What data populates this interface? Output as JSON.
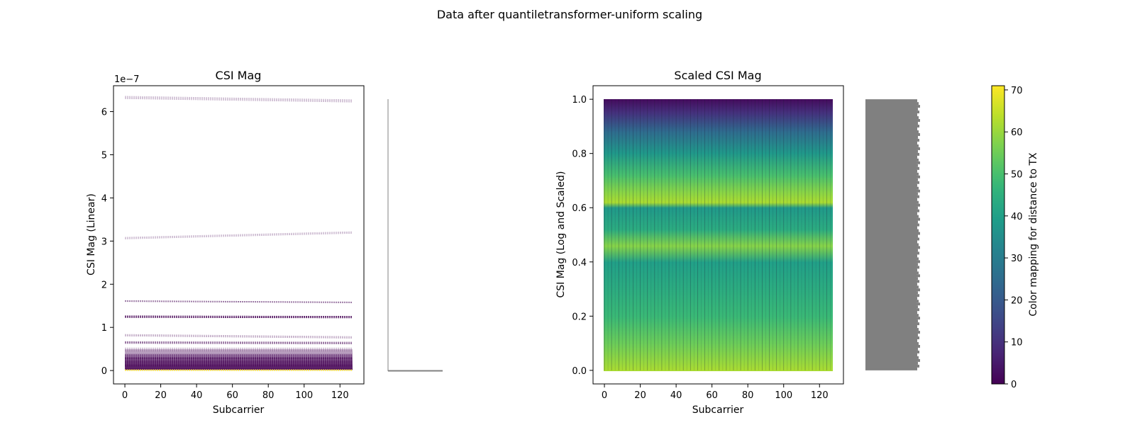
{
  "figure_title": "Data after quantiletransformer-uniform scaling",
  "chart_data": [
    {
      "type": "line",
      "title": "CSI Mag",
      "xlabel": "Subcarrier",
      "ylabel": "CSI Mag (Linear)",
      "offset_text": "1e−7",
      "xlim": [
        -6.35,
        133.35
      ],
      "ylim": [
        -0.31,
        6.6
      ],
      "xticks": [
        0,
        20,
        40,
        60,
        80,
        100,
        120
      ],
      "yticks": [
        0,
        1,
        2,
        3,
        4,
        5,
        6
      ],
      "x_range": [
        0,
        127
      ],
      "colormap": "viridis",
      "series": [
        {
          "y_start": 6.3,
          "y_end": 6.22,
          "color": "#440154",
          "opacity": 0.25,
          "count": 4
        },
        {
          "y_start": 3.05,
          "y_end": 3.18,
          "color": "#440154",
          "opacity": 0.25,
          "count": 3
        },
        {
          "y_start": 1.6,
          "y_end": 1.57,
          "color": "#440154",
          "opacity": 0.55,
          "count": 2
        },
        {
          "y_start": 1.23,
          "y_end": 1.22,
          "color": "#440154",
          "opacity": 0.85,
          "count": 3
        },
        {
          "y_start": 0.8,
          "y_end": 0.75,
          "color": "#440154",
          "opacity": 0.3,
          "count": 3
        },
        {
          "y_start": 0.63,
          "y_end": 0.62,
          "color": "#440154",
          "opacity": 0.6,
          "count": 3
        },
        {
          "y_start": 0.45,
          "y_end": 0.45,
          "color": "#440154",
          "opacity": 0.25,
          "count": 5
        },
        {
          "y_start": 0.28,
          "y_end": 0.28,
          "color": "#440154",
          "opacity": 0.4,
          "count": 6
        },
        {
          "y_start": 0.1,
          "y_end": 0.1,
          "color": "#440154",
          "opacity": 0.6,
          "count": 12
        },
        {
          "y_start": 0.0,
          "y_end": 0.0,
          "color": "#fde725",
          "opacity": 0.9,
          "count": 2
        }
      ],
      "histogram": {
        "color": "#808080",
        "y_max": 6.3
      }
    },
    {
      "type": "heatmap",
      "title": "Scaled CSI Mag",
      "xlabel": "Subcarrier",
      "ylabel": "CSI Mag (Log and Scaled)",
      "xlim": [
        -6.35,
        133.35
      ],
      "ylim": [
        -0.05,
        1.05
      ],
      "xticks": [
        0,
        20,
        40,
        60,
        80,
        100,
        120
      ],
      "yticks": [
        0.0,
        0.2,
        0.4,
        0.6,
        0.8,
        1.0
      ],
      "x_range": [
        0,
        127
      ],
      "y_range": [
        0,
        1
      ],
      "color_by_y": [
        {
          "y": 1.0,
          "value": 2
        },
        {
          "y": 0.95,
          "value": 10
        },
        {
          "y": 0.88,
          "value": 25
        },
        {
          "y": 0.8,
          "value": 38
        },
        {
          "y": 0.72,
          "value": 50
        },
        {
          "y": 0.66,
          "value": 58
        },
        {
          "y": 0.62,
          "value": 62
        },
        {
          "y": 0.6,
          "value": 38
        },
        {
          "y": 0.52,
          "value": 44
        },
        {
          "y": 0.46,
          "value": 58
        },
        {
          "y": 0.4,
          "value": 40
        },
        {
          "y": 0.3,
          "value": 44
        },
        {
          "y": 0.2,
          "value": 48
        },
        {
          "y": 0.1,
          "value": 55
        },
        {
          "y": 0.0,
          "value": 62
        }
      ],
      "histogram": {
        "color": "#808080"
      }
    }
  ],
  "colorbar": {
    "label": "Color mapping for distance to TX",
    "colormap": "viridis",
    "range": [
      0,
      71
    ],
    "ticks": [
      0,
      10,
      20,
      30,
      40,
      50,
      60,
      70
    ]
  }
}
